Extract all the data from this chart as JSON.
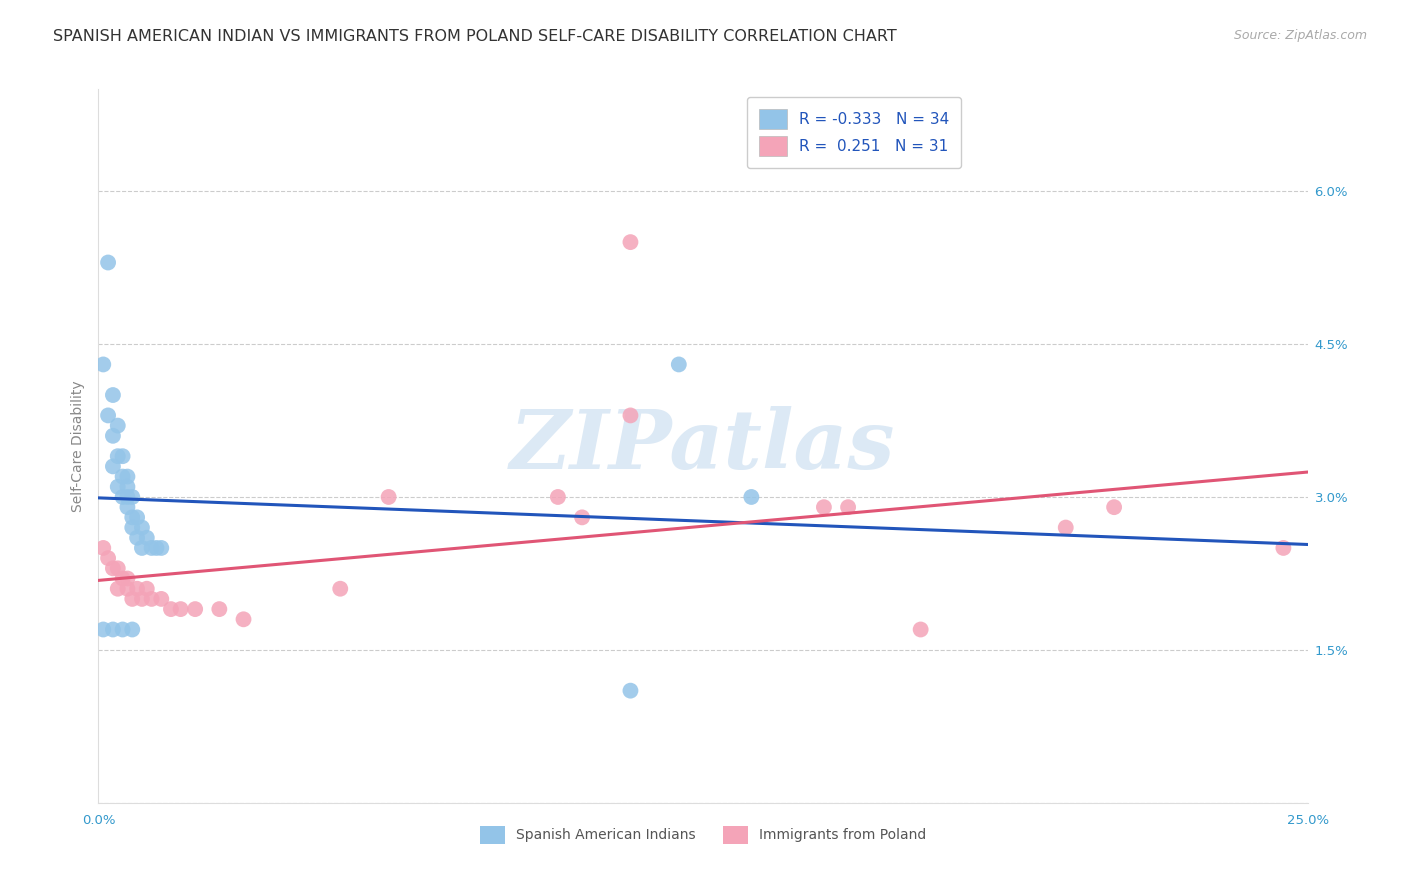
{
  "title": "SPANISH AMERICAN INDIAN VS IMMIGRANTS FROM POLAND SELF-CARE DISABILITY CORRELATION CHART",
  "source": "Source: ZipAtlas.com",
  "ylabel": "Self-Care Disability",
  "xlim": [
    0.0,
    0.25
  ],
  "ylim": [
    0.0,
    0.07
  ],
  "xticks": [
    0.0,
    0.05,
    0.1,
    0.15,
    0.2,
    0.25
  ],
  "xtick_labels": [
    "0.0%",
    "",
    "",
    "",
    "",
    "25.0%"
  ],
  "yticks_right": [
    0.0,
    0.015,
    0.03,
    0.045,
    0.06
  ],
  "ytick_labels_right": [
    "",
    "1.5%",
    "3.0%",
    "4.5%",
    "6.0%"
  ],
  "color_blue": "#93C4E8",
  "color_pink": "#F4A4B8",
  "line_color_blue": "#2255BB",
  "line_color_pink": "#E05575",
  "watermark_text": "ZIPatlas",
  "blue_r": -0.333,
  "blue_n": 34,
  "pink_r": 0.251,
  "pink_n": 31,
  "legend_label1": "Spanish American Indians",
  "legend_label2": "Immigrants from Poland",
  "blue_x": [
    0.002,
    0.001,
    0.003,
    0.002,
    0.004,
    0.003,
    0.004,
    0.005,
    0.003,
    0.005,
    0.006,
    0.004,
    0.006,
    0.005,
    0.006,
    0.007,
    0.006,
    0.007,
    0.008,
    0.007,
    0.009,
    0.008,
    0.01,
    0.009,
    0.011,
    0.012,
    0.013,
    0.001,
    0.003,
    0.005,
    0.007,
    0.135,
    0.12,
    0.11
  ],
  "blue_y": [
    0.053,
    0.043,
    0.04,
    0.038,
    0.037,
    0.036,
    0.034,
    0.034,
    0.033,
    0.032,
    0.032,
    0.031,
    0.031,
    0.03,
    0.03,
    0.03,
    0.029,
    0.028,
    0.028,
    0.027,
    0.027,
    0.026,
    0.026,
    0.025,
    0.025,
    0.025,
    0.025,
    0.017,
    0.017,
    0.017,
    0.017,
    0.03,
    0.043,
    0.011
  ],
  "pink_x": [
    0.001,
    0.002,
    0.003,
    0.004,
    0.005,
    0.006,
    0.004,
    0.006,
    0.008,
    0.01,
    0.007,
    0.009,
    0.011,
    0.013,
    0.015,
    0.017,
    0.02,
    0.025,
    0.03,
    0.05,
    0.06,
    0.095,
    0.1,
    0.11,
    0.15,
    0.155,
    0.17,
    0.2,
    0.21,
    0.245,
    0.11
  ],
  "pink_y": [
    0.025,
    0.024,
    0.023,
    0.023,
    0.022,
    0.022,
    0.021,
    0.021,
    0.021,
    0.021,
    0.02,
    0.02,
    0.02,
    0.02,
    0.019,
    0.019,
    0.019,
    0.019,
    0.018,
    0.021,
    0.03,
    0.03,
    0.028,
    0.038,
    0.029,
    0.029,
    0.017,
    0.027,
    0.029,
    0.025,
    0.055
  ],
  "title_fontsize": 11.5,
  "source_fontsize": 9,
  "axis_label_fontsize": 10,
  "tick_fontsize": 9.5,
  "legend_fontsize": 11
}
